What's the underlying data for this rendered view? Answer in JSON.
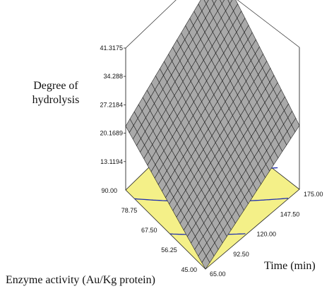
{
  "chart_data": {
    "type": "surface3d",
    "zlabel_line1": "Degree of",
    "zlabel_line2": "hydrolysis",
    "xlabel": "Time (min)",
    "ylabel": "Enzyme activity (Au/Kg protein)",
    "x_ticks": [
      "65.00",
      "92.50",
      "120.00",
      "147.50",
      "175.00"
    ],
    "y_ticks": [
      "45.00",
      "56.25",
      "67.50",
      "78.75",
      "90.00"
    ],
    "z_ticks": [
      "13.1194",
      "20.1689",
      "27.2184",
      "34.288",
      "41.3175"
    ],
    "xlim": [
      65,
      175
    ],
    "ylim": [
      45,
      90
    ],
    "zlim": [
      6.07,
      41.3175
    ],
    "z_min": 6.07,
    "z_max": 41.3175,
    "surface_color": "#a9a9a9",
    "mesh_color": "#1a1a1a",
    "floor_color": "#f4f088",
    "contour_color": "#1f2fb0",
    "contour_levels": [
      13.1194,
      20.1689,
      27.2184,
      34.288
    ]
  }
}
